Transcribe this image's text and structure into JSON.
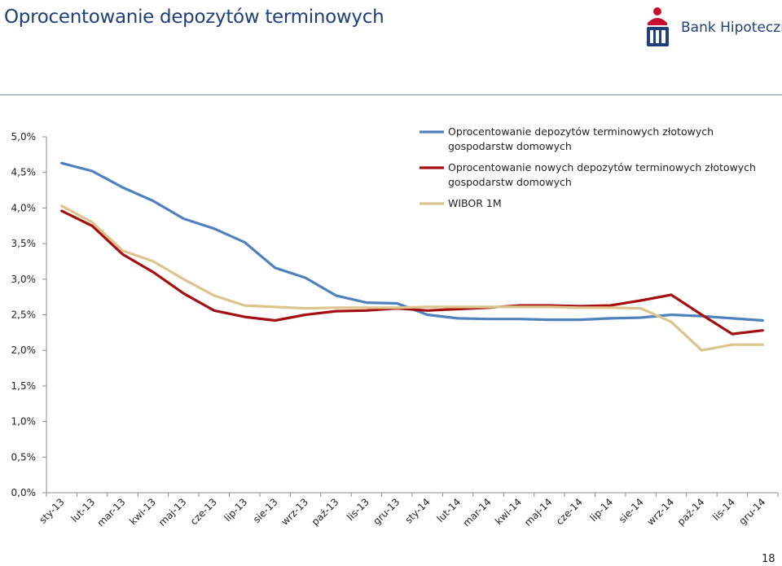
{
  "page": {
    "title": "Oprocentowanie depozytów terminowych",
    "brand": "Bank Hipoteczny",
    "page_number": "18"
  },
  "colors": {
    "title": "#1f3f7a",
    "series": [
      "#4f81bd",
      "#a50f12",
      "#dcc48c"
    ],
    "logo_red": "#c8102e",
    "logo_blue": "#1f3f7a"
  },
  "icons": {
    "logo": "pko-logo-icon"
  },
  "chart_data": {
    "type": "line",
    "title": "",
    "xlabel": "",
    "ylabel": "",
    "ylim": [
      0,
      5
    ],
    "y_ticks": [
      0,
      0.5,
      1.0,
      1.5,
      2.0,
      2.5,
      3.0,
      3.5,
      4.0,
      4.5,
      5.0
    ],
    "y_tick_labels": [
      "0,0%",
      "0,5%",
      "1,0%",
      "1,5%",
      "2,0%",
      "2,5%",
      "3,0%",
      "3,5%",
      "4,0%",
      "4,5%",
      "5,0%"
    ],
    "grid": false,
    "legend_position": "top-right",
    "categories": [
      "sty-13",
      "lut-13",
      "mar-13",
      "kwi-13",
      "maj-13",
      "cze-13",
      "lip-13",
      "sie-13",
      "wrz-13",
      "paź-13",
      "lis-13",
      "gru-13",
      "sty-14",
      "lut-14",
      "mar-14",
      "kwi-14",
      "maj-14",
      "cze-14",
      "lip-14",
      "sie-14",
      "wrz-14",
      "paź-14",
      "lis-14",
      "gru-14"
    ],
    "series": [
      {
        "name": "Oprocentowanie depozytów terminowych złotowych gospodarstw domowych",
        "name_lines": [
          "Oprocentowanie depozytów terminowych złotowych",
          "gospodarstw domowych"
        ],
        "color": "#4f81bd",
        "values": [
          4.63,
          4.52,
          4.29,
          4.1,
          3.85,
          3.71,
          3.52,
          3.16,
          3.02,
          2.77,
          2.67,
          2.66,
          2.5,
          2.45,
          2.44,
          2.44,
          2.43,
          2.43,
          2.45,
          2.46,
          2.5,
          2.48,
          2.45,
          2.42
        ]
      },
      {
        "name": "Oprocentowanie nowych depozytów terminowych złotowych gospodarstw domowych",
        "name_lines": [
          "Oprocentowanie nowych depozytów terminowych złotowych",
          "gospodarstw domowych"
        ],
        "color": "#a50f12",
        "values": [
          3.96,
          3.75,
          3.35,
          3.1,
          2.8,
          2.56,
          2.47,
          2.42,
          2.5,
          2.55,
          2.56,
          2.59,
          2.56,
          2.58,
          2.6,
          2.63,
          2.63,
          2.62,
          2.63,
          2.7,
          2.78,
          2.5,
          2.23,
          2.28
        ]
      },
      {
        "name": "WIBOR 1M",
        "name_lines": [
          "WIBOR 1M"
        ],
        "color": "#dcc48c",
        "values": [
          4.03,
          3.8,
          3.4,
          3.25,
          3.0,
          2.77,
          2.63,
          2.61,
          2.59,
          2.6,
          2.6,
          2.6,
          2.61,
          2.61,
          2.61,
          2.61,
          2.61,
          2.6,
          2.6,
          2.59,
          2.4,
          2.0,
          2.08,
          2.08
        ]
      }
    ]
  }
}
